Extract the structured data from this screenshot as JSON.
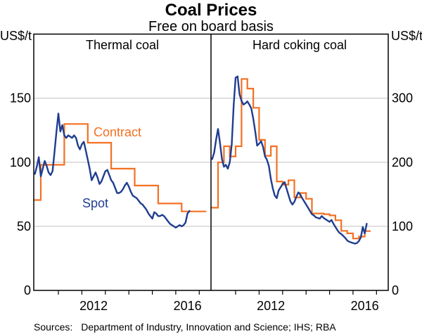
{
  "header": {
    "title": "Coal Prices",
    "subtitle": "Free on board basis"
  },
  "footer": {
    "sources_label": "Sources:",
    "sources": "Department of Industry, Innovation and Science; IHS; RBA"
  },
  "colors": {
    "spot": "#1f3d90",
    "contract": "#f37021",
    "grid": "#c0c0c0",
    "axis": "#000000"
  },
  "chart_data": [
    {
      "type": "line",
      "panel": "left",
      "title": "Thermal coal",
      "unit": "US$/t",
      "ylim": [
        0,
        200
      ],
      "yticks": [
        0,
        50,
        100,
        150
      ],
      "ytick_side": "left",
      "xlim_years": [
        2009.95,
        2017.5
      ],
      "xticks_years": [
        2011,
        2012,
        2013,
        2014,
        2015,
        2016,
        2017
      ],
      "xtick_labels": [
        {
          "text": "2012",
          "at_year": 2012.5
        },
        {
          "text": "2016",
          "at_year": 2016.5
        }
      ],
      "grid": true,
      "annotations": [
        {
          "text": "Contract",
          "series": "Contract"
        },
        {
          "text": "Spot",
          "series": "Spot"
        }
      ],
      "series": [
        {
          "name": "Contract",
          "style": "step",
          "color": "contract",
          "steps": [
            [
              2009.95,
              70.5
            ],
            [
              2010.25,
              98
            ],
            [
              2011.25,
              129.85
            ],
            [
              2012.25,
              115.2
            ],
            [
              2013.25,
              95
            ],
            [
              2014.25,
              81.8
            ],
            [
              2015.25,
              67.8
            ],
            [
              2016.25,
              61.6
            ]
          ],
          "end_year": 2017.3
        },
        {
          "name": "Spot",
          "style": "line",
          "color": "spot",
          "start_year": 2010.0,
          "step_years": 0.0833333,
          "values": [
            91,
            97,
            104,
            89,
            95,
            101,
            97,
            92,
            90,
            93,
            108,
            124,
            138,
            124,
            129,
            121,
            119,
            121,
            120,
            119,
            121,
            119,
            113,
            110,
            114,
            116,
            109,
            102,
            95,
            86,
            89,
            92,
            88,
            83,
            85,
            89,
            93,
            94,
            90,
            86,
            84,
            80,
            76,
            76,
            77,
            79,
            82,
            84,
            81,
            77,
            74,
            73,
            72,
            70,
            68,
            67,
            65,
            63,
            60,
            58,
            56,
            61,
            60,
            58,
            58,
            59,
            58,
            56,
            54,
            52,
            51,
            50,
            49,
            50,
            51,
            50,
            51,
            53,
            60,
            62
          ]
        }
      ]
    },
    {
      "type": "line",
      "panel": "right",
      "title": "Hard coking coal",
      "unit": "US$/t",
      "ylim": [
        0,
        400
      ],
      "yticks": [
        0,
        100,
        200,
        300
      ],
      "ytick_side": "right",
      "xlim_years": [
        2009.95,
        2017.5
      ],
      "xticks_years": [
        2011,
        2012,
        2013,
        2014,
        2015,
        2016,
        2017
      ],
      "xtick_labels": [
        {
          "text": "2012",
          "at_year": 2012.5
        },
        {
          "text": "2016",
          "at_year": 2016.5
        }
      ],
      "grid": true,
      "annotations": [],
      "series": [
        {
          "name": "Contract",
          "style": "step",
          "color": "contract",
          "steps": [
            [
              2009.95,
              129
            ],
            [
              2010.25,
              200
            ],
            [
              2010.5,
              225
            ],
            [
              2010.75,
              209
            ],
            [
              2011.0,
              225
            ],
            [
              2011.25,
              330
            ],
            [
              2011.5,
              315
            ],
            [
              2011.75,
              285
            ],
            [
              2012.0,
              235
            ],
            [
              2012.25,
              210
            ],
            [
              2012.5,
              225
            ],
            [
              2012.75,
              170
            ],
            [
              2013.0,
              165
            ],
            [
              2013.25,
              172
            ],
            [
              2013.5,
              145
            ],
            [
              2013.75,
              152
            ],
            [
              2014.0,
              143
            ],
            [
              2014.25,
              120
            ],
            [
              2014.5,
              120
            ],
            [
              2014.75,
              119
            ],
            [
              2015.0,
              117
            ],
            [
              2015.25,
              109.5
            ],
            [
              2015.5,
              93
            ],
            [
              2015.75,
              89
            ],
            [
              2016.0,
              81
            ],
            [
              2016.25,
              84
            ],
            [
              2016.5,
              92.5
            ]
          ],
          "end_year": 2016.75
        },
        {
          "name": "Spot",
          "style": "line",
          "color": "spot",
          "start_year": 2010.0,
          "step_years": 0.0833333,
          "values": [
            205,
            215,
            235,
            252,
            230,
            205,
            193,
            196,
            190,
            200,
            228,
            290,
            332,
            334,
            306,
            296,
            290,
            292,
            295,
            290,
            284,
            268,
            248,
            226,
            229,
            233,
            224,
            209,
            204,
            194,
            174,
            159,
            148,
            144,
            156,
            161,
            166,
            169,
            159,
            149,
            139,
            134,
            138,
            146,
            153,
            150,
            144,
            139,
            134,
            129,
            124,
            119,
            117,
            114,
            113,
            112,
            116,
            113,
            111,
            109,
            107,
            110,
            104,
            99,
            94,
            90,
            88,
            85,
            82,
            78,
            76,
            75,
            74,
            73,
            74,
            77,
            83,
            99,
            89,
            104
          ]
        }
      ]
    }
  ]
}
